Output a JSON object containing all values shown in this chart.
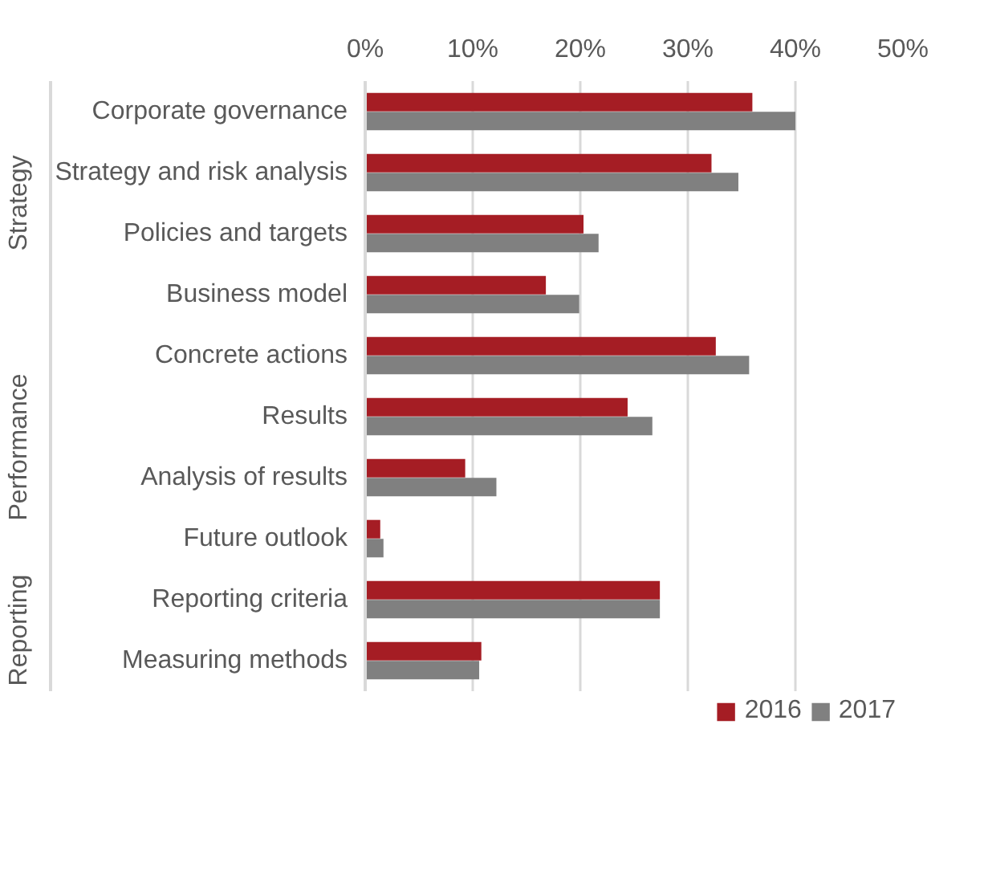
{
  "chart_data": {
    "type": "bar",
    "orientation": "horizontal",
    "categories": [
      "Corporate governance",
      "Strategy and risk analysis",
      "Policies and targets",
      "Business model",
      "Concrete actions",
      "Results",
      "Analysis of results",
      "Future outlook",
      "Reporting criteria",
      "Measuring methods"
    ],
    "annotations": [
      "Strategy",
      "Performance",
      "Reporting"
    ],
    "series": [
      {
        "name": "2016",
        "color": "#a51d24",
        "values": [
          36.0,
          32.2,
          20.3,
          16.8,
          32.6,
          24.4,
          9.3,
          1.4,
          27.4,
          10.8
        ]
      },
      {
        "name": "2017",
        "color": "#808080",
        "values": [
          40.0,
          34.7,
          21.7,
          19.9,
          35.7,
          26.7,
          12.2,
          1.7,
          27.4,
          10.6
        ]
      }
    ],
    "xlim": [
      0,
      50
    ],
    "xticks": [
      {
        "value": 0,
        "label": "0%"
      },
      {
        "value": 10,
        "label": "10%"
      },
      {
        "value": 20,
        "label": "20%"
      },
      {
        "value": 30,
        "label": "30%"
      },
      {
        "value": 40,
        "label": "40%"
      },
      {
        "value": 50,
        "label": "50%"
      }
    ],
    "grid": "x",
    "legend": "bottom"
  }
}
